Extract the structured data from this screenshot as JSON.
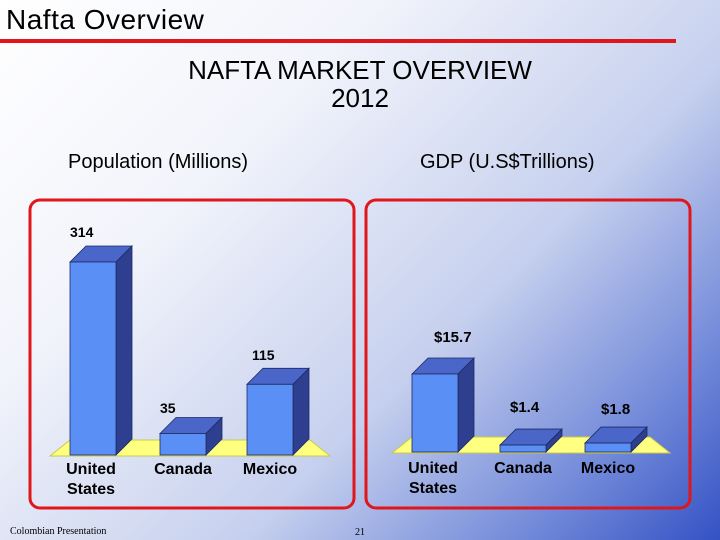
{
  "slide": {
    "title": "Nafta Overview",
    "heading_line1": "NAFTA MARKET OVERVIEW",
    "heading_line2": "2012",
    "footer_left": "Colombian Presentation",
    "page_number": "21"
  },
  "colors": {
    "accent_red": "#e0161b",
    "bar_front": "#5a8ff5",
    "bar_top": "#4a66c8",
    "bar_side": "#2d3f8e",
    "floor": "#ffff80"
  },
  "chart_data": [
    {
      "type": "bar",
      "title": "Population (Millions)",
      "categories": [
        [
          "United",
          "States"
        ],
        [
          "Canada"
        ],
        [
          "Mexico"
        ]
      ],
      "values": [
        314,
        35,
        115
      ],
      "labels": [
        "314",
        "35",
        "115"
      ],
      "ylim": [
        0,
        314
      ],
      "grid": false
    },
    {
      "type": "bar",
      "title": "GDP (U.S$Trillions)",
      "categories": [
        [
          "United",
          "States"
        ],
        [
          "Canada"
        ],
        [
          "Mexico"
        ]
      ],
      "values": [
        15.7,
        1.4,
        1.8
      ],
      "labels": [
        "$15.7",
        "$1.4",
        "$1.8"
      ],
      "ylim": [
        0,
        15.7
      ],
      "grid": false
    }
  ]
}
